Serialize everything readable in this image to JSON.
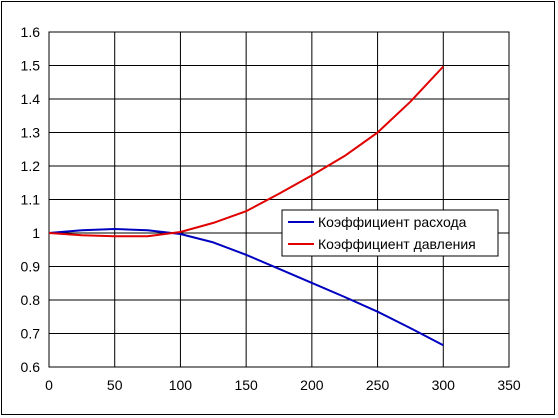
{
  "chart_data": {
    "type": "line",
    "title": "",
    "xlabel": "",
    "ylabel": "",
    "xlim": [
      0,
      350
    ],
    "ylim": [
      0.6,
      1.6
    ],
    "x_ticks": [
      0,
      50,
      100,
      150,
      200,
      250,
      300,
      350
    ],
    "y_ticks": [
      0.6,
      0.7,
      0.8,
      0.9,
      1,
      1.1,
      1.2,
      1.3,
      1.4,
      1.5,
      1.6
    ],
    "x_tick_labels": [
      "0",
      "50",
      "100",
      "150",
      "200",
      "250",
      "300",
      "350"
    ],
    "y_tick_labels": [
      "0.6",
      "0.7",
      "0.8",
      "0.9",
      "1",
      "1.1",
      "1.2",
      "1.3",
      "1.4",
      "1.5",
      "1.6"
    ],
    "grid": true,
    "legend_position": "right",
    "series": [
      {
        "name": "Коэффициент расхода",
        "color": "#0000c0",
        "x": [
          0,
          25,
          50,
          75,
          100,
          125,
          150,
          175,
          200,
          225,
          250,
          275,
          300
        ],
        "y": [
          1.0,
          1.008,
          1.012,
          1.008,
          0.997,
          0.972,
          0.935,
          0.893,
          0.851,
          0.809,
          0.765,
          0.716,
          0.665
        ]
      },
      {
        "name": "Коэффициент давления",
        "color": "#e00000",
        "x": [
          0,
          25,
          50,
          75,
          100,
          125,
          150,
          175,
          200,
          225,
          250,
          275,
          300
        ],
        "y": [
          1.0,
          0.993,
          0.99,
          0.99,
          1.003,
          1.03,
          1.065,
          1.117,
          1.172,
          1.23,
          1.3,
          1.392,
          1.497
        ]
      }
    ]
  }
}
